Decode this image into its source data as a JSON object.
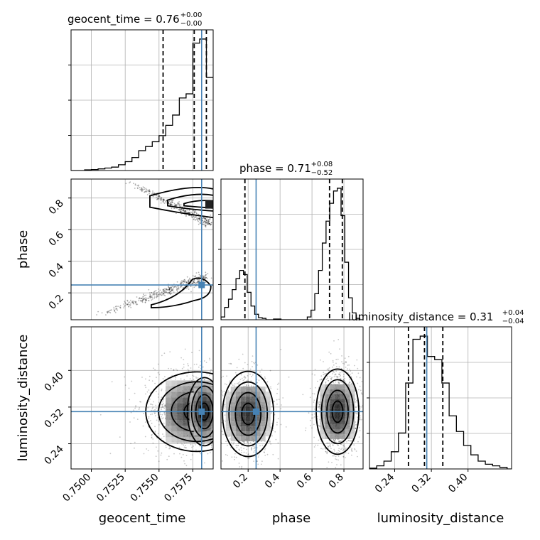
{
  "chart_data": {
    "type": "corner",
    "parameters": [
      "geocent_time",
      "phase",
      "luminosity_distance"
    ],
    "labels": {
      "geocent_time": "geocent_time",
      "phase": "phase",
      "luminosity_distance": "luminosity_distance"
    },
    "ranges": {
      "geocent_time": [
        0.7485,
        0.759
      ],
      "phase": [
        0.03,
        0.92
      ],
      "luminosity_distance": [
        0.185,
        0.495
      ]
    },
    "ticks": {
      "geocent_time": [
        "0.7500",
        "0.7525",
        "0.7550",
        "0.7575"
      ],
      "phase": [
        "0.2",
        "0.4",
        "0.6",
        "0.8"
      ],
      "luminosity_distance": [
        "0.24",
        "0.32",
        "0.40"
      ]
    },
    "truths": {
      "geocent_time": 0.75815,
      "phase": 0.25,
      "luminosity_distance": 0.31
    },
    "titles": [
      {
        "param": "geocent_time",
        "text": "geocent_time = 0.76",
        "sup": "+0.00",
        "sub": "−0.00"
      },
      {
        "param": "phase",
        "text": "phase = 0.71",
        "sup": "+0.08",
        "sub": "−0.52"
      },
      {
        "param": "luminosity_distance",
        "text": "luminosity_distance = 0.31",
        "sup": "+0.04",
        "sub": "−0.04"
      }
    ],
    "histograms": {
      "geocent_time": {
        "edges": [
          0.7485,
          0.749,
          0.7495,
          0.75,
          0.7505,
          0.751,
          0.7515,
          0.752,
          0.7525,
          0.753,
          0.7535,
          0.754,
          0.7545,
          0.755,
          0.7555,
          0.756,
          0.7565,
          0.757,
          0.7575,
          0.758,
          0.7585,
          0.759
        ],
        "counts": [
          0,
          0,
          0.005,
          0.007,
          0.012,
          0.018,
          0.025,
          0.042,
          0.065,
          0.095,
          0.145,
          0.175,
          0.21,
          0.255,
          0.33,
          0.405,
          0.53,
          0.56,
          0.93,
          0.96,
          0.68
        ],
        "quantiles": [
          0.7553,
          0.7576,
          0.7585
        ]
      },
      "phase": {
        "edges": [
          0.03,
          0.0535,
          0.077,
          0.1005,
          0.124,
          0.1475,
          0.171,
          0.1945,
          0.218,
          0.2415,
          0.265,
          0.2885,
          0.312,
          0.3355,
          0.359,
          0.3825,
          0.406,
          0.4295,
          0.453,
          0.4765,
          0.5,
          0.5235,
          0.547,
          0.5705,
          0.594,
          0.6175,
          0.641,
          0.6645,
          0.688,
          0.7115,
          0.735,
          0.7585,
          0.782,
          0.8055,
          0.829,
          0.8525,
          0.876,
          0.8995,
          0.92
        ],
        "counts": [
          0.02,
          0.09,
          0.15,
          0.22,
          0.3,
          0.36,
          0.33,
          0.2,
          0.1,
          0.04,
          0.015,
          0.01,
          0,
          0,
          0.005,
          0.005,
          0,
          0,
          0,
          0,
          0,
          0,
          0,
          0.02,
          0.07,
          0.19,
          0.36,
          0.56,
          0.72,
          0.85,
          0.94,
          0.96,
          0.76,
          0.42,
          0.16,
          0.05,
          0.01,
          0
        ],
        "quantiles": [
          0.18,
          0.71,
          0.79
        ]
      },
      "luminosity_distance": {
        "edges": [
          0.185,
          0.2008,
          0.2166,
          0.2324,
          0.2482,
          0.264,
          0.2798,
          0.2956,
          0.3114,
          0.3272,
          0.343,
          0.3588,
          0.3746,
          0.3904,
          0.4062,
          0.422,
          0.4378,
          0.4536,
          0.4694,
          0.4852,
          0.495
        ],
        "counts": [
          0.005,
          0.02,
          0.05,
          0.11,
          0.23,
          0.55,
          0.83,
          0.85,
          0.72,
          0.7,
          0.55,
          0.34,
          0.24,
          0.15,
          0.09,
          0.05,
          0.03,
          0.02,
          0.01,
          0
        ],
        "quantiles": [
          0.27,
          0.305,
          0.345
        ]
      }
    },
    "contour_levels": 4,
    "grid": true,
    "truth_color": "#4682b4"
  }
}
